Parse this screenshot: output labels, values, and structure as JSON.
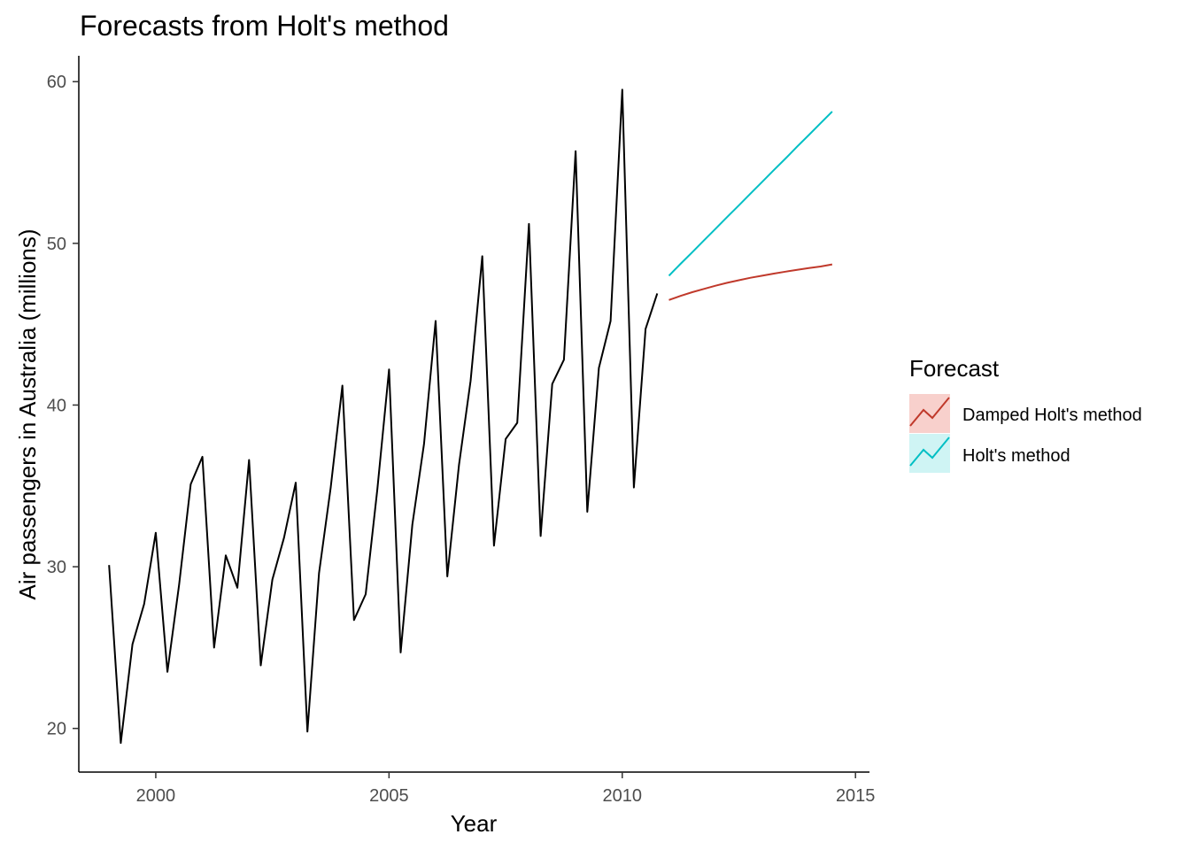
{
  "chart_data": {
    "type": "line",
    "title": "Forecasts from Holt's method",
    "xlabel": "Year",
    "ylabel": "Air passengers in Australia (millions)",
    "xlim": [
      1998.35,
      2015.3
    ],
    "ylim": [
      17.3,
      61.6
    ],
    "x_ticks": [
      2000,
      2005,
      2010,
      2015
    ],
    "y_ticks": [
      20,
      30,
      40,
      50,
      60
    ],
    "grid": false,
    "legend": {
      "title": "Forecast",
      "position": "right",
      "entries": [
        {
          "label": "Damped Holt's method",
          "color": "#c0392b",
          "fill": "#f8d0cc"
        },
        {
          "label": "Holt's method",
          "color": "#00bfc4",
          "fill": "#cff4f4"
        }
      ]
    },
    "series": [
      {
        "color": "#000000",
        "x": [
          1999.0,
          1999.25,
          1999.5,
          1999.75,
          2000.0,
          2000.25,
          2000.5,
          2000.75,
          2001.0,
          2001.25,
          2001.5,
          2001.75,
          2002.0,
          2002.25,
          2002.5,
          2002.75,
          2003.0,
          2003.25,
          2003.5,
          2003.75,
          2004.0,
          2004.25,
          2004.5,
          2004.75,
          2005.0,
          2005.25,
          2005.5,
          2005.75,
          2006.0,
          2006.25,
          2006.5,
          2006.75,
          2007.0,
          2007.25,
          2007.5,
          2007.75,
          2008.0,
          2008.25,
          2008.5,
          2008.75,
          2009.0,
          2009.25,
          2009.5,
          2009.75,
          2010.0,
          2010.25,
          2010.5,
          2010.75
        ],
        "values": [
          30.1,
          19.1,
          25.2,
          27.7,
          32.1,
          23.5,
          28.9,
          35.1,
          36.8,
          25.0,
          30.7,
          28.7,
          36.6,
          23.9,
          29.2,
          31.8,
          35.2,
          19.8,
          29.6,
          34.9,
          41.2,
          26.7,
          28.3,
          34.8,
          42.2,
          24.7,
          32.6,
          37.6,
          45.2,
          29.4,
          36.3,
          41.5,
          49.2,
          31.3,
          37.9,
          38.9,
          51.2,
          31.9,
          41.3,
          42.8,
          55.7,
          33.4,
          42.3,
          45.2,
          59.5,
          34.9,
          44.7,
          46.9
        ]
      },
      {
        "name": "Holt's method",
        "color": "#00bfc4",
        "x": [
          2011.0,
          2011.25,
          2011.5,
          2011.75,
          2012.0,
          2012.25,
          2012.5,
          2012.75,
          2013.0,
          2013.25,
          2013.5,
          2013.75,
          2014.0,
          2014.25,
          2014.5
        ],
        "values": [
          48.0,
          48.73,
          49.45,
          50.18,
          50.9,
          51.63,
          52.35,
          53.08,
          53.8,
          54.53,
          55.25,
          55.98,
          56.7,
          57.43,
          58.15
        ]
      },
      {
        "name": "Damped Holt's method",
        "color": "#c0392b",
        "x": [
          2011.0,
          2011.25,
          2011.5,
          2011.75,
          2012.0,
          2012.25,
          2012.5,
          2012.75,
          2013.0,
          2013.25,
          2013.5,
          2013.75,
          2014.0,
          2014.25,
          2014.5
        ],
        "values": [
          46.5,
          46.75,
          46.98,
          47.18,
          47.38,
          47.56,
          47.72,
          47.87,
          48.0,
          48.13,
          48.25,
          48.36,
          48.47,
          48.57,
          48.7
        ]
      }
    ]
  }
}
